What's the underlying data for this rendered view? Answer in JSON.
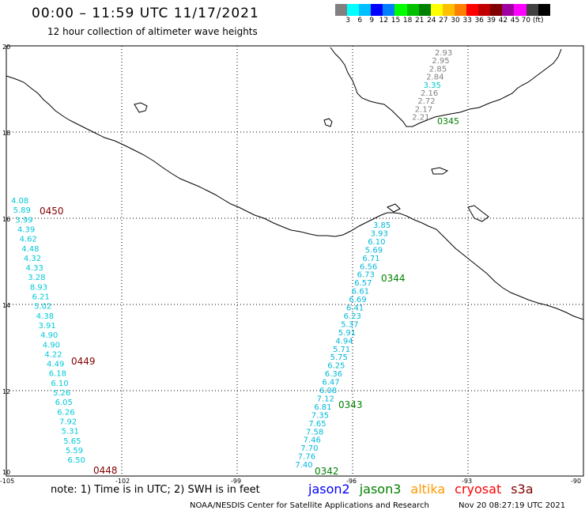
{
  "header": {
    "title": "00:00 – 11:59 UTC 11/17/2021",
    "subtitle": "12 hour collection of altimeter wave heights"
  },
  "colorbar": {
    "colors": [
      "#808080",
      "#00ffff",
      "#00c0ff",
      "#0000ff",
      "#0080ff",
      "#00ff00",
      "#00c000",
      "#008000",
      "#ffff00",
      "#ffc000",
      "#ff8000",
      "#ff0000",
      "#c00000",
      "#800000",
      "#a000a0",
      "#ff00ff",
      "#404040",
      "#000000"
    ],
    "labels": [
      "3",
      "6",
      "9",
      "12",
      "15",
      "18",
      "21",
      "24",
      "27",
      "30",
      "33",
      "36",
      "39",
      "42",
      "45",
      "70 (ft)"
    ]
  },
  "axes": {
    "x_ticks": [
      "-105",
      "-102",
      "-99",
      "-96",
      "-93",
      "-90"
    ],
    "y_ticks": [
      "20",
      "18",
      "16",
      "14",
      "12",
      "10"
    ]
  },
  "passes": [
    {
      "label": "0345",
      "color": "#008000",
      "value_color": "#808080",
      "values": [
        "2.93",
        "2.95",
        "2.85",
        "2.84",
        "3.35",
        "2.16",
        "2.72",
        "2.17",
        "2.21"
      ],
      "value_colors": [
        "#808080",
        "#808080",
        "#808080",
        "#808080",
        "#00c8c8",
        "#808080",
        "#808080",
        "#808080",
        "#808080"
      ]
    },
    {
      "label": "0450",
      "color": "#800000",
      "values": [
        "4.08",
        "5.89",
        "3.99",
        "4.39",
        "4.62",
        "4.48",
        "4.32",
        "4.33",
        "3.28",
        "8.93",
        "6.21",
        "5.02",
        "4.38",
        "3.91",
        "4.90",
        "4.90",
        "4.22",
        "4.49",
        "6.18",
        "6.10",
        "5.26",
        "6.05",
        "6.26",
        "7.92",
        "5.31",
        "5.65",
        "5.59",
        "6.50"
      ]
    },
    {
      "label": "0449",
      "color": "#800000"
    },
    {
      "label": "0448",
      "color": "#800000"
    },
    {
      "label": "0344",
      "color": "#008000",
      "values": [
        "3.85",
        "3.93",
        "6.10",
        "5.69",
        "6.71",
        "6.56",
        "6.73",
        "6.57",
        "6.61",
        "6.69",
        "6.41",
        "6.23",
        "5.37",
        "5.91",
        "4.94",
        "5.71",
        "5.75",
        "6.25",
        "6.36",
        "6.47",
        "6.08",
        "7.12",
        "6.81",
        "7.35",
        "7.65",
        "7.58",
        "7.46",
        "7.70",
        "7.76",
        "7.40"
      ]
    },
    {
      "label": "0343",
      "color": "#008000"
    },
    {
      "label": "0342",
      "color": "#008000"
    }
  ],
  "note": "note: 1) Time is in UTC; 2) SWH is in feet",
  "legend": [
    {
      "name": "jason2",
      "color": "#0000ff"
    },
    {
      "name": "jason3",
      "color": "#008000"
    },
    {
      "name": "altika",
      "color": "#ff9900"
    },
    {
      "name": "cryosat",
      "color": "#ff0000"
    },
    {
      "name": "s3a",
      "color": "#800000"
    }
  ],
  "credit": "NOAA/NESDIS Center for Satellite Applications and Research",
  "timestamp": "Nov 20 08:27:19 UTC 2021"
}
